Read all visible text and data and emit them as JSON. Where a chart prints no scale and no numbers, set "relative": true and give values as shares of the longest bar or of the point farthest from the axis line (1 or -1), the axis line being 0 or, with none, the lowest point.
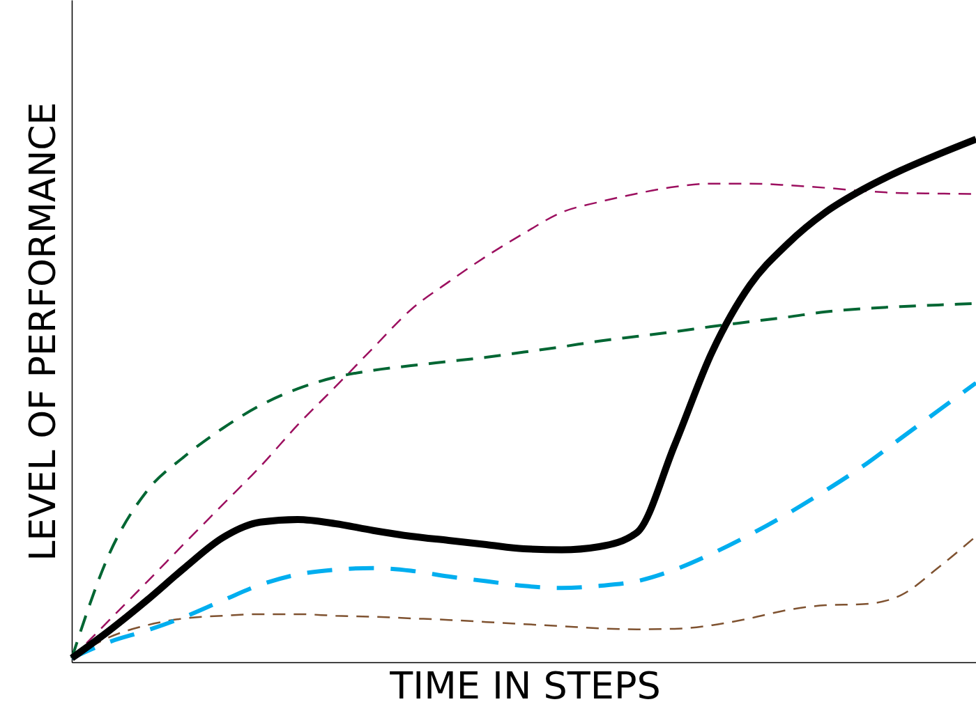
{
  "chart_data": {
    "type": "line",
    "relative": true,
    "xlabel": "TIME IN STEPS",
    "ylabel": "LEVEL OF PERFORMANCE",
    "categories": [
      null,
      null,
      null,
      null,
      null,
      null,
      null,
      null,
      null,
      null,
      null,
      null,
      null,
      null,
      null,
      null,
      null,
      null,
      null,
      null,
      null,
      null,
      null,
      null,
      null
    ],
    "grid": false,
    "marker": "none",
    "series": [
      {
        "color": "#9c0f5f",
        "line_style": "dashed",
        "values": [
          0.008,
          0.081,
          0.154,
          0.228,
          0.301,
          0.374,
          0.454,
          0.527,
          0.601,
          0.674,
          0.727,
          0.776,
          0.82,
          0.86,
          0.88,
          0.896,
          0.909,
          0.915,
          0.915,
          0.912,
          0.907,
          0.901,
          0.897,
          0.896,
          0.895
        ]
      },
      {
        "color": "#006633",
        "line_style": "dashed",
        "values": [
          0.008,
          0.208,
          0.328,
          0.394,
          0.447,
          0.491,
          0.523,
          0.545,
          0.558,
          0.567,
          0.575,
          0.583,
          0.593,
          0.603,
          0.614,
          0.623,
          0.632,
          0.642,
          0.651,
          0.66,
          0.67,
          0.676,
          0.68,
          0.683,
          0.686
        ]
      },
      {
        "color": "#7f5230",
        "line_style": "dashed",
        "values": [
          0.008,
          0.048,
          0.071,
          0.084,
          0.089,
          0.092,
          0.092,
          0.089,
          0.087,
          0.084,
          0.081,
          0.077,
          0.073,
          0.069,
          0.065,
          0.063,
          0.064,
          0.071,
          0.084,
          0.1,
          0.109,
          0.111,
          0.128,
          0.181,
          0.241
        ]
      },
      {
        "color": "#00aeef",
        "line_style": "dashed",
        "values": [
          0.008,
          0.039,
          0.061,
          0.087,
          0.118,
          0.148,
          0.168,
          0.177,
          0.18,
          0.175,
          0.164,
          0.155,
          0.146,
          0.142,
          0.146,
          0.155,
          0.177,
          0.208,
          0.244,
          0.284,
          0.328,
          0.375,
          0.428,
          0.481,
          0.534
        ]
      },
      {
        "color": "#000000",
        "line_style": "solid",
        "values": [
          0.008,
          0.061,
          0.119,
          0.181,
          0.238,
          0.268,
          0.273,
          0.265,
          0.252,
          0.241,
          0.233,
          0.225,
          0.217,
          0.215,
          0.221,
          0.248,
          0.415,
          0.594,
          0.721,
          0.8,
          0.86,
          0.904,
          0.94,
          0.971,
          1
        ]
      }
    ]
  }
}
